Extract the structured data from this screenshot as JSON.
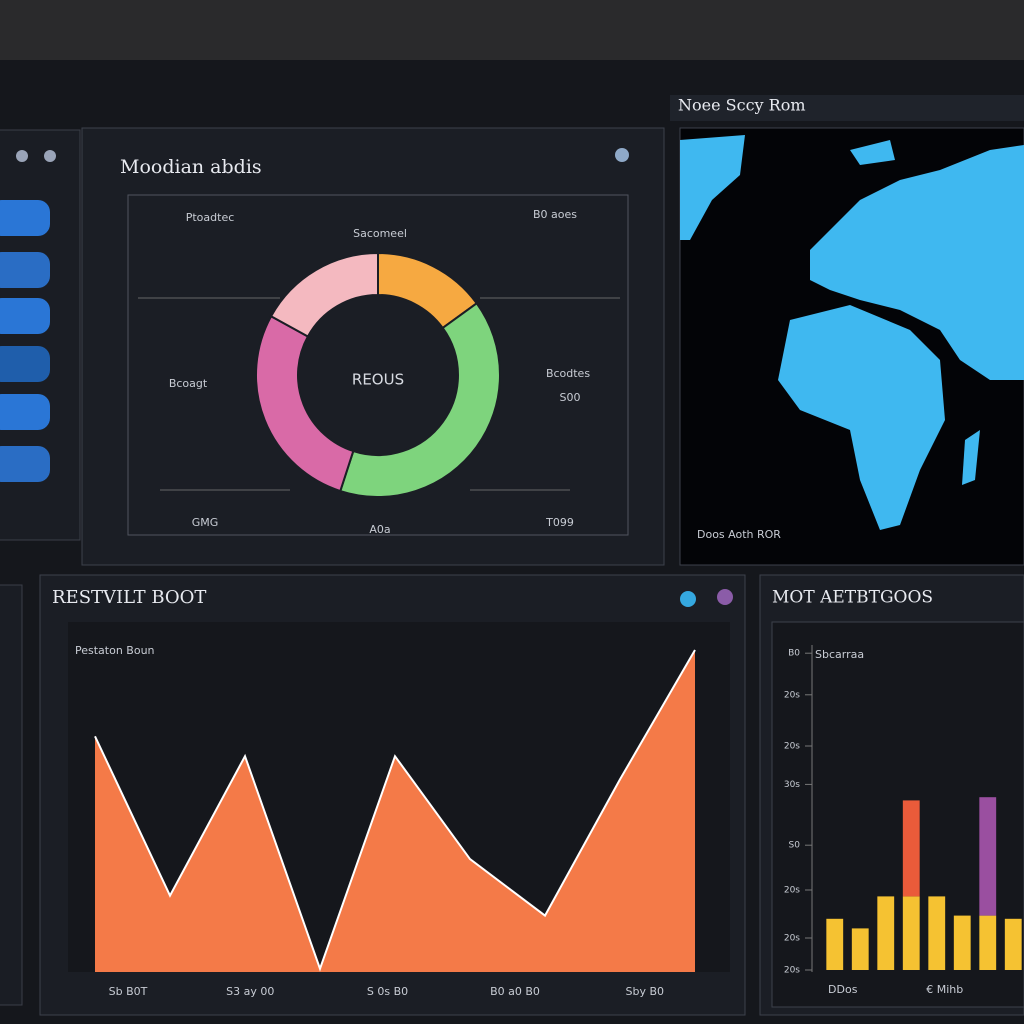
{
  "chart_data": [
    {
      "type": "pie",
      "title": "Moodian abdis",
      "center_label": "REOUS",
      "values": [
        15,
        40,
        28,
        17
      ],
      "colors": [
        "#f6a941",
        "#7ed47d",
        "#d96aa7",
        "#f4b9c0"
      ],
      "annotations": [
        "Ptoadtec",
        "Sacomeel",
        "B0 aoes",
        "Bcoagt",
        "Bcodtes",
        "S00",
        "GMG",
        "A0a",
        "T099"
      ]
    },
    {
      "type": "area",
      "title": "RESTVILT BOOT",
      "subtitle": "Pestaton Boun",
      "x": [
        0,
        1,
        2,
        3,
        4,
        5,
        6,
        7,
        8
      ],
      "series": [
        {
          "color": "#f47a48",
          "values": [
            71,
            23,
            65,
            1,
            65,
            34,
            17,
            58,
            97
          ]
        }
      ],
      "xlim": [
        0,
        8
      ],
      "ylim": [
        0,
        100
      ],
      "xticks": [
        {
          "value": 0.44,
          "label": "Sb B0T"
        },
        {
          "value": 2.07,
          "label": "S3 ay 00"
        },
        {
          "value": 3.9,
          "label": "S 0s B0"
        },
        {
          "value": 5.6,
          "label": "B0 a0 B0"
        },
        {
          "value": 7.33,
          "label": "Sby B0"
        }
      ]
    },
    {
      "type": "bar",
      "title": "MOT AETBTGOOS",
      "subtitle": "Sbcarraa",
      "categories": [
        "DDos",
        null,
        null,
        null,
        "€ Mihb",
        null,
        null,
        null
      ],
      "series": [
        {
          "color": "#f5c232",
          "values": [
            16,
            13,
            23,
            23,
            23,
            17,
            17,
            16
          ]
        },
        {
          "color": "#ea5b3a",
          "values": [
            0,
            0,
            0,
            30,
            0,
            0,
            0,
            0
          ]
        },
        {
          "color": "#9a4fa0",
          "values": [
            0,
            0,
            0,
            0,
            0,
            0,
            37,
            0
          ]
        }
      ],
      "ylim": [
        0,
        100
      ],
      "yticks": [
        {
          "value": 99,
          "label": "B0"
        },
        {
          "value": 86,
          "label": "20s"
        },
        {
          "value": 70,
          "label": "20s"
        },
        {
          "value": 58,
          "label": "30s"
        },
        {
          "value": 39,
          "label": "S0"
        },
        {
          "value": 25,
          "label": "20s"
        },
        {
          "value": 10,
          "label": "20s"
        },
        {
          "value": 0,
          "label": "20s"
        }
      ]
    }
  ],
  "map": {
    "title": "Noee Sccy Rom",
    "footer": "Doos Aoth ROR"
  }
}
